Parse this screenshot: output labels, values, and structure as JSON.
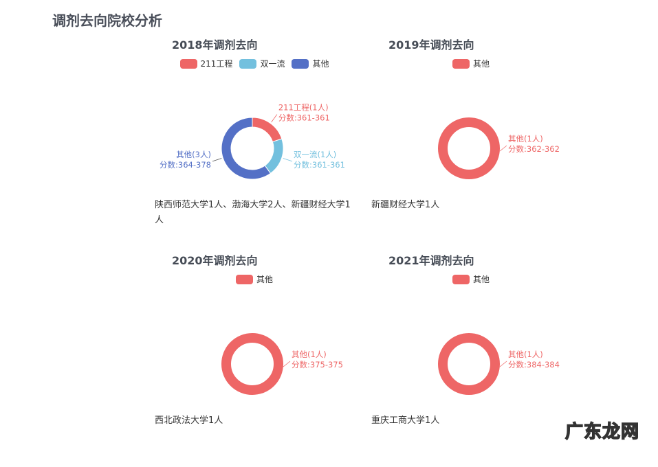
{
  "page_title": "调剂去向院校分析",
  "watermark": "广东龙网",
  "colors": {
    "211工程": "#ee6666",
    "双一流": "#73c0de",
    "其他": "#5470c6",
    "single": "#ee6666"
  },
  "chart_data": [
    {
      "type": "pie",
      "title": "2018年调剂去向",
      "legend": [
        "211工程",
        "双一流",
        "其他"
      ],
      "slices": [
        {
          "name": "211工程",
          "value": 1,
          "label": "211工程(1人)",
          "score": "分数:361-361",
          "color": "#ee6666"
        },
        {
          "name": "双一流",
          "value": 1,
          "label": "双一流(1人)",
          "score": "分数:361-361",
          "color": "#73c0de"
        },
        {
          "name": "其他",
          "value": 3,
          "label": "其他(3人)",
          "score": "分数:364-378",
          "color": "#5470c6"
        }
      ],
      "description": "陕西师范大学1人、渤海大学2人、新疆财经大学1人"
    },
    {
      "type": "pie",
      "title": "2019年调剂去向",
      "legend": [
        "其他"
      ],
      "slices": [
        {
          "name": "其他",
          "value": 1,
          "label": "其他(1人)",
          "score": "分数:362-362",
          "color": "#ee6666"
        }
      ],
      "description": "新疆财经大学1人"
    },
    {
      "type": "pie",
      "title": "2020年调剂去向",
      "legend": [
        "其他"
      ],
      "slices": [
        {
          "name": "其他",
          "value": 1,
          "label": "其他(1人)",
          "score": "分数:375-375",
          "color": "#ee6666"
        }
      ],
      "description": "西北政法大学1人"
    },
    {
      "type": "pie",
      "title": "2021年调剂去向",
      "legend": [
        "其他"
      ],
      "slices": [
        {
          "name": "其他",
          "value": 1,
          "label": "其他(1人)",
          "score": "分数:384-384",
          "color": "#ee6666"
        }
      ],
      "description": "重庆工商大学1人"
    }
  ]
}
